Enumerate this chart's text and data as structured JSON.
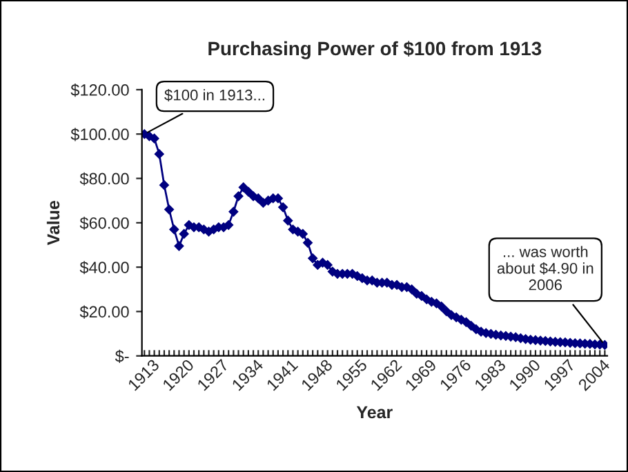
{
  "chart_data": {
    "type": "line",
    "title": "Purchasing Power of $100 from 1913",
    "xlabel": "Year",
    "ylabel": "Value",
    "categories": [
      "1913",
      null,
      null,
      null,
      null,
      null,
      null,
      "1920",
      null,
      null,
      null,
      null,
      null,
      null,
      "1927",
      null,
      null,
      null,
      null,
      null,
      null,
      "1934",
      null,
      null,
      null,
      null,
      null,
      null,
      "1941",
      null,
      null,
      null,
      null,
      null,
      null,
      "1948",
      null,
      null,
      null,
      null,
      null,
      null,
      "1955",
      null,
      null,
      null,
      null,
      null,
      null,
      "1962",
      null,
      null,
      null,
      null,
      null,
      null,
      "1969",
      null,
      null,
      null,
      null,
      null,
      null,
      "1976",
      null,
      null,
      null,
      null,
      null,
      null,
      "1983",
      null,
      null,
      null,
      null,
      null,
      null,
      "1990",
      null,
      null,
      null,
      null,
      null,
      null,
      "1997",
      null,
      null,
      null,
      null,
      null,
      null,
      "2004",
      null,
      null
    ],
    "values": [
      100,
      99,
      98,
      91,
      77,
      66,
      57,
      49.5,
      55,
      59,
      58,
      58,
      57,
      56,
      57,
      58,
      58,
      59,
      65,
      72,
      76,
      74,
      72,
      71,
      69,
      70,
      71,
      71,
      67,
      61,
      57,
      56,
      55,
      51,
      44,
      41,
      42,
      41,
      38,
      37,
      37,
      37,
      37,
      36,
      35,
      34,
      34,
      33,
      33,
      33,
      32,
      32,
      31,
      31,
      30,
      28,
      27,
      25.5,
      24.4,
      23.7,
      22.3,
      20.1,
      18.4,
      17.4,
      16.3,
      15.2,
      13.6,
      12.0,
      10.9,
      10.3,
      9.9,
      9.5,
      9.2,
      9.0,
      8.7,
      8.4,
      8.0,
      7.6,
      7.3,
      7.1,
      6.9,
      6.7,
      6.5,
      6.3,
      6.2,
      6.1,
      5.9,
      5.7,
      5.6,
      5.5,
      5.4,
      5.2,
      5.1,
      4.9
    ],
    "color": "#000080",
    "marker": "diamond",
    "line_style": "solid",
    "ylim": [
      0,
      120
    ],
    "yticks": [
      {
        "value": 0,
        "label": "$-"
      },
      {
        "value": 20,
        "label": "$20.00"
      },
      {
        "value": 40,
        "label": "$40.00"
      },
      {
        "value": 60,
        "label": "$60.00"
      },
      {
        "value": 80,
        "label": "$80.00"
      },
      {
        "value": 100,
        "label": "$100.00"
      },
      {
        "value": 120,
        "label": "$120.00"
      }
    ],
    "grid": false,
    "legend": false,
    "annotations": [
      {
        "text": "$100 in 1913...",
        "x": "1913",
        "y": 100
      },
      "... was worth\nabout $4.90 in\n2006"
    ]
  }
}
